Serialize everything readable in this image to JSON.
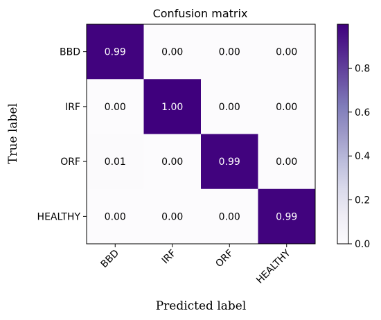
{
  "chart_data": {
    "type": "heatmap",
    "title": "Confusion matrix",
    "xlabel": "Predicted label",
    "ylabel": "True label",
    "x_categories": [
      "BBD",
      "IRF",
      "ORF",
      "HEALTHY"
    ],
    "y_categories": [
      "BBD",
      "IRF",
      "ORF",
      "HEALTHY"
    ],
    "values": [
      [
        0.99,
        0.0,
        0.0,
        0.0
      ],
      [
        0.0,
        1.0,
        0.0,
        0.0
      ],
      [
        0.01,
        0.0,
        0.99,
        0.0
      ],
      [
        0.0,
        0.0,
        0.0,
        0.99
      ]
    ],
    "value_labels": [
      [
        "0.99",
        "0.00",
        "0.00",
        "0.00"
      ],
      [
        "0.00",
        "1.00",
        "0.00",
        "0.00"
      ],
      [
        "0.01",
        "0.00",
        "0.99",
        "0.00"
      ],
      [
        "0.00",
        "0.00",
        "0.00",
        "0.99"
      ]
    ],
    "colormap": "Purples",
    "colors": {
      "low": "#fcfbfd",
      "high": "#3f007d"
    },
    "colorbar": {
      "range": [
        0.0,
        1.0
      ],
      "ticks": [
        0.0,
        0.2,
        0.4,
        0.6,
        0.8
      ],
      "tick_labels": [
        "0.0",
        "0.2",
        "0.4",
        "0.6",
        "0.8"
      ]
    },
    "x_tick_rotation_deg": 45
  }
}
